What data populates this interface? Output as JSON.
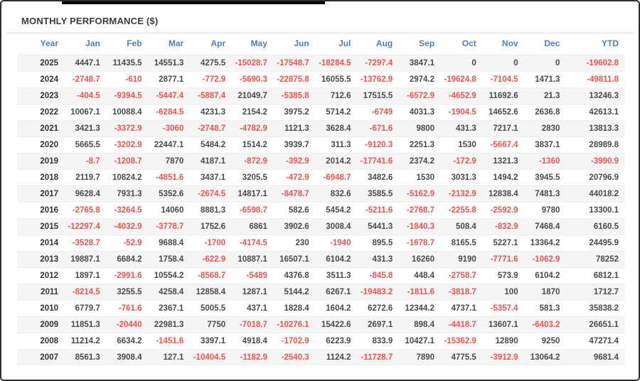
{
  "window": {
    "title": "MONTHLY PERFORMANCE ($)"
  },
  "colors": {
    "header_text": "#4d7ebf",
    "negative": "#ef5350",
    "positive": "#4a4a4a",
    "year_text": "#333333",
    "title_text": "#3b3b3b",
    "row_stripe": "#f5f5f5"
  },
  "table": {
    "columns": [
      "Year",
      "Jan",
      "Feb",
      "Mar",
      "Apr",
      "May",
      "Jun",
      "Jul",
      "Aug",
      "Sep",
      "Oct",
      "Nov",
      "Dec",
      "YTD"
    ],
    "rows": [
      {
        "year": "2025",
        "values": [
          "4447.1",
          "11435.5",
          "14551.3",
          "4275.5",
          "-15028.7",
          "-17548.7",
          "-18284.5",
          "-7297.4",
          "3847.1",
          "0",
          "0",
          "0",
          "-19602.8"
        ]
      },
      {
        "year": "2024",
        "values": [
          "-2748.7",
          "-610",
          "2877.1",
          "-772.9",
          "-5690.3",
          "-22875.8",
          "16055.5",
          "-13762.9",
          "2974.2",
          "-19624.8",
          "-7104.5",
          "1471.3",
          "-49811.8"
        ]
      },
      {
        "year": "2023",
        "values": [
          "-404.5",
          "-9394.5",
          "-5447.4",
          "-5887.4",
          "21049.7",
          "-5385.8",
          "712.6",
          "17515.5",
          "-6572.9",
          "-4652.9",
          "11692.6",
          "21.3",
          "13246.3"
        ]
      },
      {
        "year": "2022",
        "values": [
          "10067.1",
          "10088.4",
          "-6284.5",
          "4231.3",
          "2154.2",
          "3975.2",
          "5714.2",
          "-6749",
          "4031.3",
          "-1904.5",
          "14652.6",
          "2636.8",
          "42613.1"
        ]
      },
      {
        "year": "2021",
        "values": [
          "3421.3",
          "-3372.9",
          "-3060",
          "-2748.7",
          "-4782.9",
          "1121.3",
          "3628.4",
          "-671.6",
          "9800",
          "431.3",
          "7217.1",
          "2830",
          "13813.3"
        ]
      },
      {
        "year": "2020",
        "values": [
          "5665.5",
          "-3202.9",
          "22447.1",
          "5484.2",
          "1514.2",
          "3939.7",
          "311.3",
          "-9120.3",
          "2251.3",
          "1530",
          "-5667.4",
          "3837.1",
          "28989.8"
        ]
      },
      {
        "year": "2019",
        "values": [
          "-8.7",
          "-1208.7",
          "7870",
          "4187.1",
          "-872.9",
          "-392.9",
          "2014.2",
          "-17741.6",
          "2374.2",
          "-172.9",
          "1321.3",
          "-1360",
          "-3990.9"
        ]
      },
      {
        "year": "2018",
        "values": [
          "2119.7",
          "10824.2",
          "-4851.6",
          "3437.1",
          "3205.5",
          "-472.9",
          "-6948.7",
          "3482.6",
          "1530",
          "3031.3",
          "1494.2",
          "3945.5",
          "20796.9"
        ]
      },
      {
        "year": "2017",
        "values": [
          "9628.4",
          "7931.3",
          "5352.6",
          "-2674.5",
          "14817.1",
          "-8478.7",
          "832.6",
          "3585.5",
          "-5162.9",
          "-2132.9",
          "12838.4",
          "7481.3",
          "44018.2"
        ]
      },
      {
        "year": "2016",
        "values": [
          "-2765.8",
          "-3264.5",
          "14060",
          "8881.3",
          "-6598.7",
          "582.6",
          "5454.2",
          "-5211.6",
          "-2768.7",
          "-2255.8",
          "-2592.9",
          "9780",
          "13300.1"
        ]
      },
      {
        "year": "2015",
        "values": [
          "-12297.4",
          "-4032.9",
          "-3778.7",
          "1752.6",
          "6861",
          "3902.6",
          "3008.4",
          "5441.3",
          "-1840.3",
          "508.4",
          "-832.9",
          "7468.4",
          "6160.5"
        ]
      },
      {
        "year": "2014",
        "values": [
          "-3528.7",
          "-52.9",
          "9688.4",
          "-1700",
          "-4174.5",
          "230",
          "-1940",
          "895.5",
          "-1678.7",
          "8165.5",
          "5227.1",
          "13364.2",
          "24495.9"
        ]
      },
      {
        "year": "2013",
        "values": [
          "19887.1",
          "6684.2",
          "1758.4",
          "-622.9",
          "10887.1",
          "16507.1",
          "6104.2",
          "431.3",
          "16260",
          "9190",
          "-7771.6",
          "-1062.9",
          "78252"
        ]
      },
      {
        "year": "2012",
        "values": [
          "1897.1",
          "-2991.6",
          "10554.2",
          "-8568.7",
          "-5489",
          "4376.8",
          "3511.3",
          "-845.8",
          "448.4",
          "-2758.7",
          "573.9",
          "6104.2",
          "6812.1"
        ]
      },
      {
        "year": "2011",
        "values": [
          "-8214.5",
          "3255.5",
          "4258.4",
          "12858.4",
          "1287.1",
          "5144.2",
          "6267.1",
          "-19483.2",
          "-1811.6",
          "-3818.7",
          "100",
          "1870",
          "1712.7"
        ]
      },
      {
        "year": "2010",
        "values": [
          "6779.7",
          "-761.6",
          "2367.1",
          "5005.5",
          "437.1",
          "1828.4",
          "1604.2",
          "6272.6",
          "12344.2",
          "4737.1",
          "-5357.4",
          "581.3",
          "35838.2"
        ]
      },
      {
        "year": "2009",
        "values": [
          "11851.3",
          "-20440",
          "22981.3",
          "7750",
          "-7018.7",
          "-10276.1",
          "15422.6",
          "2697.1",
          "898.4",
          "-4418.7",
          "13607.1",
          "-6403.2",
          "26651.1"
        ]
      },
      {
        "year": "2008",
        "values": [
          "11214.2",
          "6634.2",
          "-1451.6",
          "3397.1",
          "4918.4",
          "-1702.9",
          "6223.9",
          "833.9",
          "10427.1",
          "-15362.9",
          "12890",
          "9250",
          "47271.4"
        ]
      },
      {
        "year": "2007",
        "values": [
          "8561.3",
          "3908.4",
          "127.1",
          "-10404.5",
          "-1182.9",
          "-2540.3",
          "1124.2",
          "-11728.7",
          "7890",
          "4775.5",
          "-3912.9",
          "13064.2",
          "9681.4"
        ]
      }
    ]
  }
}
